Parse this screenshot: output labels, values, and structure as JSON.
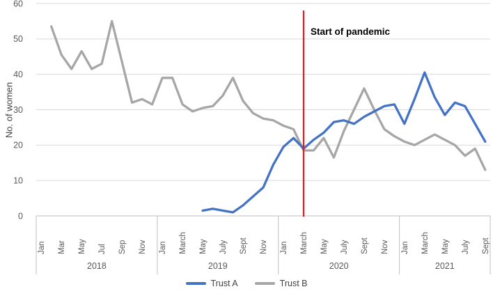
{
  "chart_data": {
    "type": "line",
    "ylabel": "No. of women",
    "ylim": [
      0,
      60
    ],
    "yticks": [
      0,
      10,
      20,
      30,
      40,
      50,
      60
    ],
    "grid": "horizontal",
    "x_axis": {
      "years": [
        {
          "label": "2018",
          "month_count": 12,
          "month_labels": [
            "Jan",
            "Mar",
            "May",
            "Jul",
            "Sep",
            "Nov"
          ]
        },
        {
          "label": "2019",
          "month_count": 12,
          "month_labels": [
            "Jan",
            "March",
            "May",
            "July",
            "Sept",
            "Nov"
          ]
        },
        {
          "label": "2020",
          "month_count": 12,
          "month_labels": [
            "Jan",
            "March",
            "May",
            "July",
            "Sept",
            "Nov"
          ]
        },
        {
          "label": "2021",
          "month_count": 9,
          "month_labels": [
            "Jan",
            "March",
            "May",
            "July",
            "Sept"
          ]
        }
      ]
    },
    "annotation": {
      "label": "Start of pandemic",
      "x_month_index": 26,
      "month": "March 2020"
    },
    "series": [
      {
        "name": "Trust A",
        "color": "#4472c4",
        "start_index": 16,
        "start_month": "May 2019",
        "values": [
          1.5,
          2,
          1.5,
          1,
          3,
          5.5,
          8,
          14.5,
          19.5,
          22,
          19,
          21.5,
          23.5,
          26.5,
          27,
          26,
          28,
          29.5,
          31,
          31.5,
          26,
          33,
          40.5,
          33.5,
          28.5,
          32,
          31,
          26,
          21
        ]
      },
      {
        "name": "Trust B",
        "color": "#a6a6a6",
        "start_index": 1,
        "start_month": "Feb 2018",
        "values": [
          53.5,
          45.5,
          41.5,
          46.5,
          41.5,
          43,
          55,
          43.5,
          32,
          33,
          31.5,
          39,
          39,
          31.5,
          29.5,
          30.5,
          31,
          34,
          39,
          32.5,
          29,
          27.5,
          27,
          25.5,
          24.5,
          18.5,
          18.5,
          22,
          16.5,
          24,
          30,
          36,
          30,
          24.5,
          22.5,
          21,
          20,
          21.5,
          23,
          21.5,
          20,
          17,
          19,
          13
        ]
      }
    ],
    "colors": {
      "pandemic_line": "#e8191d",
      "gridline": "#d9d9d9",
      "axis_line": "#bfbfbf",
      "axis_text": "#595959",
      "ylabel_text": "#3f3f3f",
      "annotation_text": "#000000",
      "legend_text": "#404040"
    }
  },
  "legend": {
    "items": [
      {
        "label": "Trust A"
      },
      {
        "label": "Trust B"
      }
    ]
  }
}
